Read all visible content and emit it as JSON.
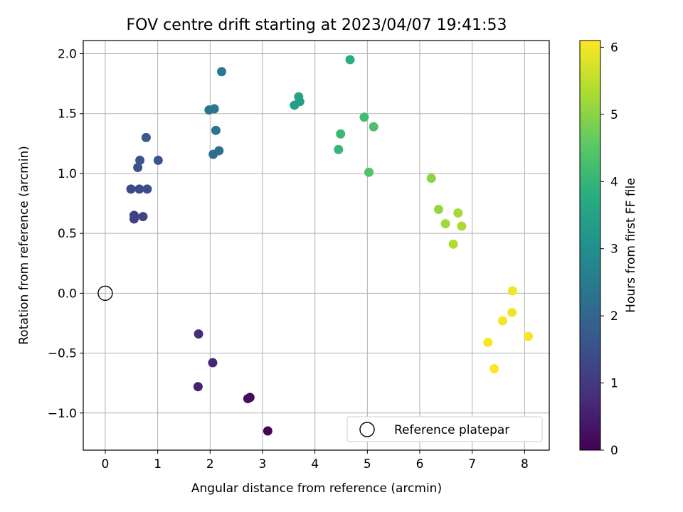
{
  "chart_data": {
    "type": "scatter",
    "title": "FOV centre drift starting at 2023/04/07 19:41:53",
    "xlabel": "Angular distance from reference (arcmin)",
    "ylabel": "Rotation from reference (arcmin)",
    "xlim": [
      -0.42,
      8.47
    ],
    "ylim": [
      -1.31,
      2.11
    ],
    "xticks": [
      0,
      1,
      2,
      3,
      4,
      5,
      6,
      7,
      8
    ],
    "xtick_labels": [
      "0",
      "1",
      "2",
      "3",
      "4",
      "5",
      "6",
      "7",
      "8"
    ],
    "yticks": [
      -1.0,
      -0.5,
      0.0,
      0.5,
      1.0,
      1.5,
      2.0
    ],
    "ytick_labels": [
      "−1.0",
      "−0.5",
      "0.0",
      "0.5",
      "1.0",
      "1.5",
      "2.0"
    ],
    "grid": true,
    "colormap": "viridis",
    "colorbar": {
      "label": "Hours from first FF file",
      "range": [
        0,
        6.1
      ],
      "ticks": [
        0,
        1,
        2,
        3,
        4,
        5,
        6
      ],
      "tick_labels": [
        "0",
        "1",
        "2",
        "3",
        "4",
        "5",
        "6"
      ]
    },
    "reference_point": {
      "x": 0,
      "y": 0
    },
    "legend": {
      "position": "lower-right",
      "entries": [
        "Reference platepar"
      ]
    },
    "points": [
      {
        "x": 3.1,
        "y": -1.15,
        "hours": 0.05
      },
      {
        "x": 2.76,
        "y": -0.87,
        "hours": 0.15
      },
      {
        "x": 2.72,
        "y": -0.88,
        "hours": 0.25
      },
      {
        "x": 1.77,
        "y": -0.78,
        "hours": 0.55
      },
      {
        "x": 2.05,
        "y": -0.58,
        "hours": 0.65
      },
      {
        "x": 1.78,
        "y": -0.34,
        "hours": 0.75
      },
      {
        "x": 0.55,
        "y": 0.62,
        "hours": 1.15
      },
      {
        "x": 0.55,
        "y": 0.65,
        "hours": 1.2
      },
      {
        "x": 0.72,
        "y": 0.64,
        "hours": 1.25
      },
      {
        "x": 0.49,
        "y": 0.87,
        "hours": 1.35
      },
      {
        "x": 0.65,
        "y": 0.87,
        "hours": 1.4
      },
      {
        "x": 0.8,
        "y": 0.87,
        "hours": 1.45
      },
      {
        "x": 0.62,
        "y": 1.05,
        "hours": 1.55
      },
      {
        "x": 0.66,
        "y": 1.11,
        "hours": 1.6
      },
      {
        "x": 1.01,
        "y": 1.11,
        "hours": 1.65
      },
      {
        "x": 0.78,
        "y": 1.3,
        "hours": 1.7
      },
      {
        "x": 2.06,
        "y": 1.16,
        "hours": 2.2
      },
      {
        "x": 2.17,
        "y": 1.19,
        "hours": 2.25
      },
      {
        "x": 2.11,
        "y": 1.36,
        "hours": 2.3
      },
      {
        "x": 1.98,
        "y": 1.53,
        "hours": 2.35
      },
      {
        "x": 2.08,
        "y": 1.54,
        "hours": 2.4
      },
      {
        "x": 2.22,
        "y": 1.85,
        "hours": 2.45
      },
      {
        "x": 3.61,
        "y": 1.57,
        "hours": 3.4
      },
      {
        "x": 3.71,
        "y": 1.6,
        "hours": 3.45
      },
      {
        "x": 3.69,
        "y": 1.64,
        "hours": 3.5
      },
      {
        "x": 4.67,
        "y": 1.95,
        "hours": 3.8
      },
      {
        "x": 4.45,
        "y": 1.2,
        "hours": 4.05
      },
      {
        "x": 4.49,
        "y": 1.33,
        "hours": 4.1
      },
      {
        "x": 4.94,
        "y": 1.47,
        "hours": 4.2
      },
      {
        "x": 5.12,
        "y": 1.39,
        "hours": 4.3
      },
      {
        "x": 5.03,
        "y": 1.01,
        "hours": 4.4
      },
      {
        "x": 6.22,
        "y": 0.96,
        "hours": 5.0
      },
      {
        "x": 6.36,
        "y": 0.7,
        "hours": 5.1
      },
      {
        "x": 6.49,
        "y": 0.58,
        "hours": 5.2
      },
      {
        "x": 6.73,
        "y": 0.67,
        "hours": 5.25
      },
      {
        "x": 6.8,
        "y": 0.56,
        "hours": 5.3
      },
      {
        "x": 6.64,
        "y": 0.41,
        "hours": 5.35
      },
      {
        "x": 7.77,
        "y": 0.02,
        "hours": 5.95
      },
      {
        "x": 7.76,
        "y": -0.16,
        "hours": 5.95
      },
      {
        "x": 7.58,
        "y": -0.23,
        "hours": 6.0
      },
      {
        "x": 8.07,
        "y": -0.36,
        "hours": 6.0
      },
      {
        "x": 7.3,
        "y": -0.41,
        "hours": 6.05
      },
      {
        "x": 7.42,
        "y": -0.63,
        "hours": 6.1
      }
    ]
  }
}
